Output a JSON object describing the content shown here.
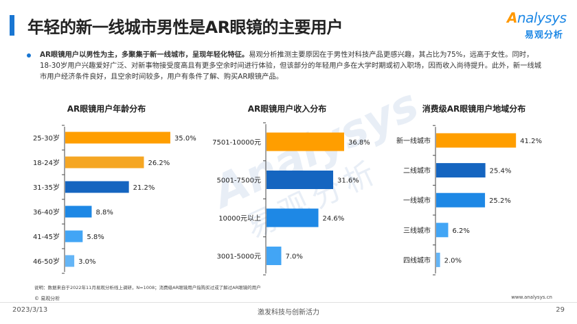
{
  "header": {
    "title": "年轻的新一线城市男性是AR眼镜的主要用户",
    "logo_en_prefix": "A",
    "logo_en_rest": "nalysys",
    "logo_cn": "易观分析"
  },
  "summary": {
    "bold": "AR眼镜用户以男性为主，多聚集于新一线城市，呈现年轻化特征。",
    "text": "易观分析推测主要原因在于男性对科技产品更感兴趣，其占比为75%，远高于女性。同时，18-30岁用户兴趣爱好广泛、对新事物接受度高且有更多空余时间进行体验，但该部分的年轻用户多在大学时期或初入职场，因而收入尚待提升。此外，新一线城市用户经济条件良好，且空余时间较多，用户有条件了解、购买AR眼镜产品。"
  },
  "watermark": {
    "en": "Analysys",
    "cn": "易观分析"
  },
  "colors": {
    "highlight": "#ff9e00",
    "dark_blue": "#1565c0",
    "blue": "#1e88e5",
    "light_blue": "#42a5f5",
    "lighter_blue": "#64b5f6",
    "lightest_blue": "#90caf9",
    "axis": "#444444",
    "title_bar": "#1976d2"
  },
  "chart_data": [
    {
      "type": "bar",
      "orientation": "horizontal",
      "title": "AR眼镜用户年龄分布",
      "categories": [
        "25-30岁",
        "18-24岁",
        "31-35岁",
        "36-40岁",
        "41-45岁",
        "46-50岁"
      ],
      "values": [
        35.0,
        26.2,
        21.2,
        8.8,
        5.8,
        3.0
      ],
      "labels": [
        "35.0%",
        "26.2%",
        "21.2%",
        "8.8%",
        "5.8%",
        "3.0%"
      ],
      "colors": [
        "#ff9e00",
        "#f5a623",
        "#1565c0",
        "#1e88e5",
        "#42a5f5",
        "#64b5f6"
      ],
      "unit": "%"
    },
    {
      "type": "bar",
      "orientation": "horizontal",
      "title": "AR眼镜用户收入分布",
      "categories": [
        "7501-10000元",
        "5001-7500元",
        "10000元以上",
        "3001-5000元"
      ],
      "values": [
        36.8,
        31.6,
        24.6,
        7.0
      ],
      "labels": [
        "36.8%",
        "31.6%",
        "24.6%",
        "7.0%"
      ],
      "colors": [
        "#ff9e00",
        "#1565c0",
        "#1e88e5",
        "#42a5f5"
      ],
      "unit": "%"
    },
    {
      "type": "bar",
      "orientation": "horizontal",
      "title": "消费级AR眼镜用户地域分布",
      "categories": [
        "新一线城市",
        "二线城市",
        "一线城市",
        "三线城市",
        "四线城市"
      ],
      "values": [
        41.2,
        25.4,
        25.2,
        6.2,
        2.0
      ],
      "labels": [
        "41.2%",
        "25.4%",
        "25.2%",
        "6.2%",
        "2.0%"
      ],
      "colors": [
        "#ff9e00",
        "#1565c0",
        "#1e88e5",
        "#42a5f5",
        "#64b5f6"
      ],
      "unit": "%"
    }
  ],
  "footer": {
    "note": "说明：数据来自于2022年11月易观分析线上调研，N=1008；消费级AR眼镜用户指购买过或了解过AR眼镜的用户",
    "copyright": "© 易观分析",
    "website": "www.analysys.cn",
    "date": "2023/3/13",
    "slogan": "激发科技与创新活力",
    "page": "29"
  }
}
